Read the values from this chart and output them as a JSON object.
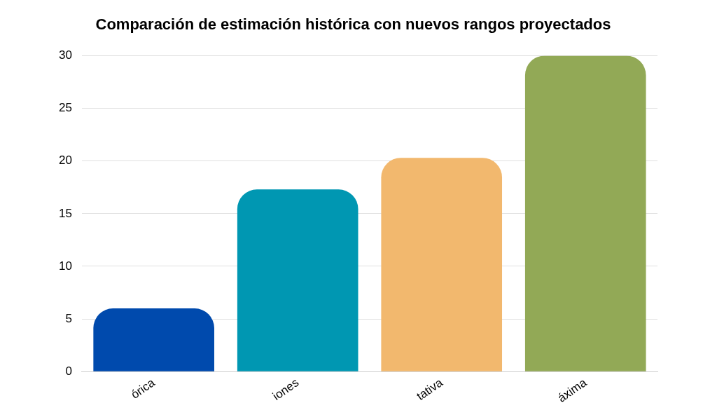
{
  "chart_data": {
    "type": "bar",
    "title": "Comparación de estimación histórica con nuevos rangos proyectados",
    "categories": [
      "órica",
      "iones",
      "tativa",
      "áxima"
    ],
    "values": [
      6,
      17.3,
      20.3,
      30
    ],
    "colors": [
      "#004aad",
      "#0097b2",
      "#f2b86e",
      "#92a956"
    ],
    "ylim": [
      0,
      30
    ],
    "yticks": [
      0,
      5,
      10,
      15,
      20,
      25,
      30
    ],
    "grid": "y"
  }
}
